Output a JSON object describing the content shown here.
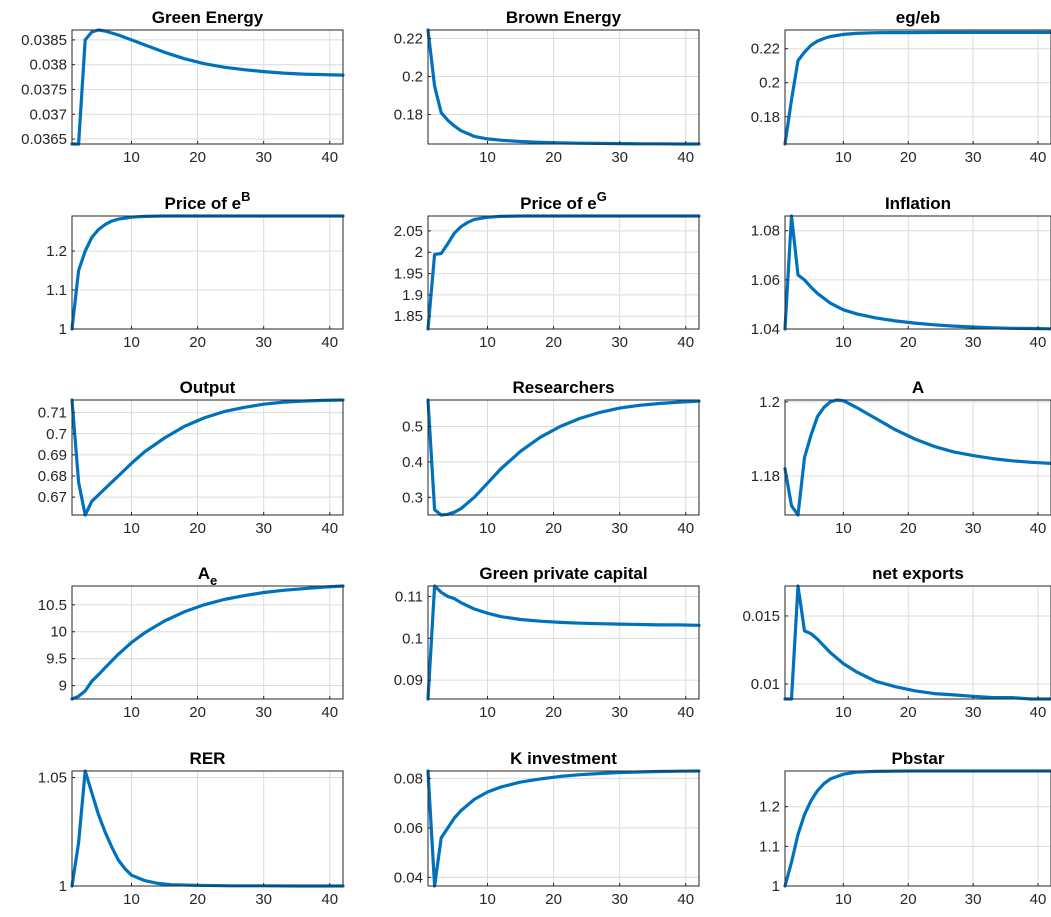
{
  "style": {
    "line_color": "#0072BD",
    "grid": true
  },
  "chart_data": [
    {
      "type": "line",
      "title": "Green Energy",
      "xlim": [
        1,
        42
      ],
      "ylim": [
        0.0364,
        0.0387
      ],
      "xticks": [
        10,
        20,
        30,
        40
      ],
      "xticklabels": [
        "10",
        "20",
        "30",
        "40"
      ],
      "yticks": [
        0.0365,
        0.037,
        0.0375,
        0.038,
        0.0385
      ],
      "yticklabels": [
        "0.0365",
        "0.037",
        "0.0375",
        "0.038",
        "0.0385"
      ],
      "x": [
        1,
        2,
        3,
        4,
        5,
        6,
        8,
        10,
        12,
        15,
        18,
        21,
        24,
        27,
        30,
        33,
        36,
        39,
        42
      ],
      "y": [
        0.0364,
        0.0364,
        0.0385,
        0.03866,
        0.0387,
        0.03868,
        0.0386,
        0.0385,
        0.0384,
        0.03825,
        0.03812,
        0.03802,
        0.03795,
        0.0379,
        0.03786,
        0.03783,
        0.03781,
        0.0378,
        0.03779
      ]
    },
    {
      "type": "line",
      "title": "Brown Energy",
      "xlim": [
        1,
        42
      ],
      "ylim": [
        0.1645,
        0.2245
      ],
      "xticks": [
        10,
        20,
        30,
        40
      ],
      "xticklabels": [
        "10",
        "20",
        "30",
        "40"
      ],
      "yticks": [
        0.18,
        0.2,
        0.22
      ],
      "yticklabels": [
        "0.18",
        "0.2",
        "0.22"
      ],
      "x": [
        1,
        2,
        3,
        4,
        5,
        6,
        8,
        10,
        12,
        15,
        18,
        21,
        24,
        27,
        30,
        33,
        36,
        39,
        42
      ],
      "y": [
        0.2245,
        0.195,
        0.181,
        0.177,
        0.174,
        0.1715,
        0.1685,
        0.1672,
        0.1665,
        0.1658,
        0.1654,
        0.1651,
        0.1649,
        0.1648,
        0.1647,
        0.1646,
        0.1646,
        0.1645,
        0.1645
      ]
    },
    {
      "type": "line",
      "title": "eg/eb",
      "xlim": [
        1,
        42
      ],
      "ylim": [
        0.164,
        0.231
      ],
      "xticks": [
        10,
        20,
        30,
        40
      ],
      "xticklabels": [
        "10",
        "20",
        "30",
        "40"
      ],
      "yticks": [
        0.18,
        0.2,
        0.22
      ],
      "yticklabels": [
        "0.18",
        "0.2",
        "0.22"
      ],
      "x": [
        1,
        2,
        3,
        4,
        5,
        6,
        7,
        8,
        10,
        12,
        15,
        20,
        25,
        30,
        35,
        42
      ],
      "y": [
        0.164,
        0.19,
        0.213,
        0.218,
        0.222,
        0.2245,
        0.226,
        0.2272,
        0.2284,
        0.229,
        0.2294,
        0.2295,
        0.2296,
        0.2296,
        0.2296,
        0.2296
      ]
    },
    {
      "type": "line",
      "title": "Price of e",
      "title_sup": "B",
      "xlim": [
        1,
        42
      ],
      "ylim": [
        1,
        1.29
      ],
      "xticks": [
        10,
        20,
        30,
        40
      ],
      "xticklabels": [
        "10",
        "20",
        "30",
        "40"
      ],
      "yticks": [
        1,
        1.1,
        1.2
      ],
      "yticklabels": [
        "1",
        "1.1",
        "1.2"
      ],
      "x": [
        1,
        2,
        3,
        4,
        5,
        6,
        7,
        8,
        10,
        12,
        15,
        20,
        30,
        42
      ],
      "y": [
        1,
        1.15,
        1.2,
        1.235,
        1.255,
        1.268,
        1.277,
        1.282,
        1.287,
        1.289,
        1.29,
        1.29,
        1.29,
        1.29
      ]
    },
    {
      "type": "line",
      "title": "Price of e",
      "title_sup": "G",
      "xlim": [
        1,
        42
      ],
      "ylim": [
        1.82,
        2.085
      ],
      "xticks": [
        10,
        20,
        30,
        40
      ],
      "xticklabels": [
        "10",
        "20",
        "30",
        "40"
      ],
      "yticks": [
        1.85,
        1.9,
        1.95,
        2,
        2.05
      ],
      "yticklabels": [
        "1.85",
        "1.9",
        "1.95",
        "2",
        "2.05"
      ],
      "x": [
        1,
        2,
        3,
        4,
        5,
        6,
        7,
        8,
        10,
        12,
        15,
        20,
        30,
        42
      ],
      "y": [
        1.82,
        1.995,
        1.997,
        2.02,
        2.045,
        2.06,
        2.07,
        2.077,
        2.082,
        2.084,
        2.085,
        2.085,
        2.085,
        2.085
      ]
    },
    {
      "type": "line",
      "title": "Inflation",
      "xlim": [
        1,
        42
      ],
      "ylim": [
        1.04,
        1.086
      ],
      "xticks": [
        10,
        20,
        30,
        40
      ],
      "xticklabels": [
        "10",
        "20",
        "30",
        "40"
      ],
      "yticks": [
        1.04,
        1.06,
        1.08
      ],
      "yticklabels": [
        "1.04",
        "1.06",
        "1.08"
      ],
      "x": [
        1,
        2,
        3,
        4,
        5,
        6,
        8,
        10,
        12,
        15,
        18,
        21,
        24,
        27,
        30,
        33,
        36,
        39,
        42
      ],
      "y": [
        1.04,
        1.086,
        1.062,
        1.06,
        1.057,
        1.0545,
        1.0505,
        1.0478,
        1.0462,
        1.0445,
        1.0433,
        1.0424,
        1.0417,
        1.0412,
        1.0408,
        1.0405,
        1.0403,
        1.0402,
        1.0401
      ]
    },
    {
      "type": "line",
      "title": "Output",
      "xlim": [
        1,
        42
      ],
      "ylim": [
        0.6615,
        0.716
      ],
      "xticks": [
        10,
        20,
        30,
        40
      ],
      "xticklabels": [
        "10",
        "20",
        "30",
        "40"
      ],
      "yticks": [
        0.67,
        0.68,
        0.69,
        0.7,
        0.71
      ],
      "yticklabels": [
        "0.67",
        "0.68",
        "0.69",
        "0.7",
        "0.71"
      ],
      "x": [
        1,
        2,
        3,
        4,
        5,
        6,
        8,
        10,
        12,
        15,
        18,
        21,
        24,
        27,
        30,
        33,
        36,
        39,
        42
      ],
      "y": [
        0.716,
        0.677,
        0.6615,
        0.668,
        0.671,
        0.674,
        0.68,
        0.686,
        0.6915,
        0.698,
        0.7035,
        0.7075,
        0.7105,
        0.7125,
        0.714,
        0.715,
        0.7155,
        0.7158,
        0.716
      ]
    },
    {
      "type": "line",
      "title": "Researchers",
      "xlim": [
        1,
        42
      ],
      "ylim": [
        0.25,
        0.575
      ],
      "xticks": [
        10,
        20,
        30,
        40
      ],
      "xticklabels": [
        "10",
        "20",
        "30",
        "40"
      ],
      "yticks": [
        0.3,
        0.4,
        0.5
      ],
      "yticklabels": [
        "0.3",
        "0.4",
        "0.5"
      ],
      "x": [
        1,
        2,
        3,
        4,
        5,
        6,
        8,
        10,
        12,
        15,
        18,
        21,
        24,
        27,
        30,
        33,
        36,
        39,
        42
      ],
      "y": [
        0.575,
        0.265,
        0.25,
        0.252,
        0.258,
        0.268,
        0.3,
        0.34,
        0.38,
        0.43,
        0.47,
        0.5,
        0.523,
        0.54,
        0.552,
        0.56,
        0.565,
        0.569,
        0.572
      ]
    },
    {
      "type": "line",
      "title": "A",
      "xlim": [
        1,
        42
      ],
      "ylim": [
        1.1695,
        1.2005
      ],
      "xticks": [
        10,
        20,
        30,
        40
      ],
      "xticklabels": [
        "10",
        "20",
        "30",
        "40"
      ],
      "yticks": [
        1.18,
        1.2
      ],
      "yticklabels": [
        "1.18",
        "1.2"
      ],
      "x": [
        1,
        2,
        3,
        4,
        5,
        6,
        7,
        8,
        9,
        10,
        12,
        15,
        18,
        21,
        24,
        27,
        30,
        33,
        36,
        39,
        42
      ],
      "y": [
        1.182,
        1.172,
        1.1695,
        1.185,
        1.191,
        1.196,
        1.1985,
        1.2,
        1.2005,
        1.2003,
        1.1985,
        1.1955,
        1.1925,
        1.19,
        1.188,
        1.1865,
        1.1855,
        1.1847,
        1.1841,
        1.1837,
        1.1834
      ]
    },
    {
      "type": "line",
      "title": "A",
      "title_sub": "e",
      "xlim": [
        1,
        42
      ],
      "ylim": [
        8.75,
        10.85
      ],
      "xticks": [
        10,
        20,
        30,
        40
      ],
      "xticklabels": [
        "10",
        "20",
        "30",
        "40"
      ],
      "yticks": [
        9,
        9.5,
        10,
        10.5
      ],
      "yticklabels": [
        "9",
        "9.5",
        "10",
        "10.5"
      ],
      "x": [
        1,
        2,
        3,
        4,
        5,
        6,
        8,
        10,
        12,
        15,
        18,
        21,
        24,
        27,
        30,
        33,
        36,
        39,
        42
      ],
      "y": [
        8.75,
        8.8,
        8.9,
        9.08,
        9.2,
        9.33,
        9.58,
        9.8,
        9.98,
        10.2,
        10.37,
        10.5,
        10.6,
        10.67,
        10.73,
        10.77,
        10.8,
        10.83,
        10.85
      ]
    },
    {
      "type": "line",
      "title": "Green private capital",
      "xlim": [
        1,
        42
      ],
      "ylim": [
        0.0855,
        0.1125
      ],
      "xticks": [
        10,
        20,
        30,
        40
      ],
      "xticklabels": [
        "10",
        "20",
        "30",
        "40"
      ],
      "yticks": [
        0.09,
        0.1,
        0.11
      ],
      "yticklabels": [
        "0.09",
        "0.1",
        "0.11"
      ],
      "x": [
        1,
        2,
        3,
        4,
        5,
        6,
        8,
        10,
        12,
        15,
        18,
        21,
        24,
        27,
        30,
        33,
        36,
        39,
        42
      ],
      "y": [
        0.0855,
        0.1125,
        0.111,
        0.11,
        0.1095,
        0.1085,
        0.107,
        0.106,
        0.1052,
        0.1045,
        0.1041,
        0.1038,
        0.1036,
        0.1035,
        0.1034,
        0.1033,
        0.1032,
        0.1032,
        0.1031
      ]
    },
    {
      "type": "line",
      "title": "net exports",
      "xlim": [
        1,
        42
      ],
      "ylim": [
        0.0089,
        0.0172
      ],
      "xticks": [
        10,
        20,
        30,
        40
      ],
      "xticklabels": [
        "10",
        "20",
        "30",
        "40"
      ],
      "yticks": [
        0.01,
        0.015
      ],
      "yticklabels": [
        "0.01",
        "0.015"
      ],
      "x": [
        1,
        2,
        3,
        4,
        5,
        6,
        8,
        10,
        12,
        15,
        18,
        21,
        24,
        27,
        30,
        33,
        36,
        39,
        42
      ],
      "y": [
        0.0089,
        0.0089,
        0.0172,
        0.0139,
        0.0137,
        0.0133,
        0.0123,
        0.0115,
        0.0109,
        0.0102,
        0.0098,
        0.0095,
        0.0093,
        0.0092,
        0.0091,
        0.009,
        0.009,
        0.0089,
        0.0089
      ]
    },
    {
      "type": "line",
      "title": "RER",
      "xlim": [
        1,
        42
      ],
      "ylim": [
        1,
        1.053
      ],
      "xticks": [
        10,
        20,
        30,
        40
      ],
      "xticklabels": [
        "10",
        "20",
        "30",
        "40"
      ],
      "yticks": [
        1,
        1.05
      ],
      "yticklabels": [
        "1",
        "1.05"
      ],
      "x": [
        1,
        2,
        3,
        4,
        5,
        6,
        7,
        8,
        9,
        10,
        12,
        14,
        16,
        20,
        25,
        30,
        35,
        42
      ],
      "y": [
        1,
        1.02,
        1.053,
        1.043,
        1.033,
        1.025,
        1.018,
        1.012,
        1.008,
        1.005,
        1.0025,
        1.0012,
        1.0006,
        1.0003,
        1.0001,
        1.0001,
        1.0,
        1.0
      ]
    },
    {
      "type": "line",
      "title": "K investment",
      "xlim": [
        1,
        42
      ],
      "ylim": [
        0.0365,
        0.083
      ],
      "xticks": [
        10,
        20,
        30,
        40
      ],
      "xticklabels": [
        "10",
        "20",
        "30",
        "40"
      ],
      "yticks": [
        0.04,
        0.06,
        0.08
      ],
      "yticklabels": [
        "0.04",
        "0.06",
        "0.08"
      ],
      "x": [
        1,
        2,
        3,
        4,
        5,
        6,
        8,
        10,
        12,
        15,
        18,
        21,
        24,
        27,
        30,
        33,
        36,
        39,
        42
      ],
      "y": [
        0.083,
        0.0365,
        0.056,
        0.06,
        0.064,
        0.067,
        0.0715,
        0.0745,
        0.0765,
        0.0785,
        0.0798,
        0.0808,
        0.0815,
        0.082,
        0.0824,
        0.0826,
        0.0828,
        0.0829,
        0.083
      ]
    },
    {
      "type": "line",
      "title": "Pbstar",
      "xlim": [
        1,
        42
      ],
      "ylim": [
        1,
        1.29
      ],
      "xticks": [
        10,
        20,
        30,
        40
      ],
      "xticklabels": [
        "10",
        "20",
        "30",
        "40"
      ],
      "yticks": [
        1,
        1.1,
        1.2
      ],
      "yticklabels": [
        "1",
        "1.1",
        "1.2"
      ],
      "x": [
        1,
        2,
        3,
        4,
        5,
        6,
        7,
        8,
        10,
        12,
        15,
        20,
        30,
        42
      ],
      "y": [
        1,
        1.06,
        1.13,
        1.18,
        1.215,
        1.24,
        1.258,
        1.27,
        1.282,
        1.287,
        1.289,
        1.29,
        1.29,
        1.29
      ]
    }
  ]
}
